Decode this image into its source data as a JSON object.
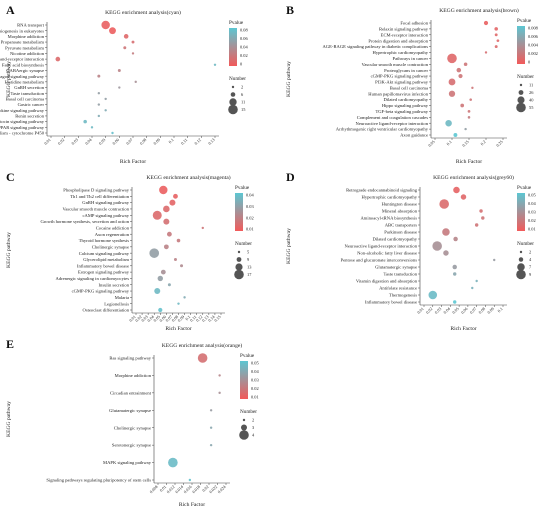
{
  "panels": [
    {
      "letter": "A",
      "title": "KEGG enrichment analysis(cyan)",
      "xlabel": "Rich Factor",
      "ylabel": "KEGG pathway",
      "xlim": [
        0.01,
        0.13
      ],
      "xticks": [
        "0.01",
        "0.02",
        "0.03",
        "0.04",
        "0.05",
        "0.06",
        "0.07",
        "0.08",
        "0.09",
        "0.1",
        "0.11",
        "0.12",
        "0.13"
      ],
      "pvalue_title": "Pvalue",
      "pvalue_range": [
        0,
        0.08
      ],
      "pvalue_ticks": [
        "0.08",
        "0.06",
        "0.04",
        "0.02",
        "0"
      ],
      "size_title": "Number",
      "size_ticks": [
        2,
        6,
        11,
        15
      ],
      "size_range": [
        2,
        15
      ],
      "points": [
        {
          "pathway": "RNA transport",
          "rich": 0.05,
          "count": 13,
          "pvalue": 0.005
        },
        {
          "pathway": "Ribosome biogenesis in eukaryotes",
          "rich": 0.055,
          "count": 10,
          "pvalue": 0.003
        },
        {
          "pathway": "Morphine addiction",
          "rich": 0.065,
          "count": 6,
          "pvalue": 0.01
        },
        {
          "pathway": "Propanoate metabolism",
          "rich": 0.07,
          "count": 3,
          "pvalue": 0.015
        },
        {
          "pathway": "Pyruvate metabolism",
          "rich": 0.064,
          "count": 3,
          "pvalue": 0.02
        },
        {
          "pathway": "Nicotine addiction",
          "rich": 0.07,
          "count": 2,
          "pvalue": 0.025
        },
        {
          "pathway": "Neuroactive ligand-receptor interaction",
          "rich": 0.015,
          "count": 6,
          "pvalue": 0.012
        },
        {
          "pathway": "Fatty acid biosynthesis",
          "rich": 0.13,
          "count": 2,
          "pvalue": 0.07
        },
        {
          "pathway": "GABAergic synapse",
          "rich": 0.06,
          "count": 3,
          "pvalue": 0.03
        },
        {
          "pathway": "Glucagon signaling pathway",
          "rich": 0.045,
          "count": 3,
          "pvalue": 0.03
        },
        {
          "pathway": "Histidine metabolism",
          "rich": 0.072,
          "count": 2,
          "pvalue": 0.04
        },
        {
          "pathway": "GnRH secretion",
          "rich": 0.06,
          "count": 2,
          "pvalue": 0.045
        },
        {
          "pathway": "Taste transduction",
          "rich": 0.045,
          "count": 2,
          "pvalue": 0.05
        },
        {
          "pathway": "Basal cell carcinoma",
          "rich": 0.05,
          "count": 2,
          "pvalue": 0.05
        },
        {
          "pathway": "Gastric cancer",
          "rich": 0.045,
          "count": 2,
          "pvalue": 0.05
        },
        {
          "pathway": "Adipocytokine signaling pathway",
          "rich": 0.05,
          "count": 2,
          "pvalue": 0.06
        },
        {
          "pathway": "Renin secretion",
          "rich": 0.045,
          "count": 2,
          "pvalue": 0.06
        },
        {
          "pathway": "Oxytocin signaling pathway",
          "rich": 0.035,
          "count": 4,
          "pvalue": 0.07
        },
        {
          "pathway": "PPAR signaling pathway",
          "rich": 0.04,
          "count": 2,
          "pvalue": 0.07
        },
        {
          "pathway": "Drug metabolism - cytochrome P450",
          "rich": 0.055,
          "count": 2,
          "pvalue": 0.075
        }
      ]
    },
    {
      "letter": "B",
      "title": "KEGG enrichment analysis(brown)",
      "xlabel": "Rich Factor",
      "ylabel": "KEGG pathway",
      "xlim": [
        0.05,
        0.25
      ],
      "xticks": [
        "0.05",
        "0.1",
        "0.15",
        "0.2",
        "0.25"
      ],
      "pvalue_title": "Pvalue",
      "pvalue_range": [
        0,
        0.008
      ],
      "pvalue_ticks": [
        "0.008",
        "0.006",
        "0.004",
        "0.002",
        "0"
      ],
      "size_title": "Number",
      "size_ticks": [
        11,
        26,
        40,
        55
      ],
      "size_range": [
        11,
        55
      ],
      "points": [
        {
          "pathway": "Focal adhesion",
          "rich": 0.2,
          "count": 22,
          "pvalue": 0.0005
        },
        {
          "pathway": "Relaxin signaling pathway",
          "rich": 0.23,
          "count": 18,
          "pvalue": 0.0008
        },
        {
          "pathway": "ECM-receptor interaction",
          "rich": 0.23,
          "count": 14,
          "pvalue": 0.001
        },
        {
          "pathway": "Protein digestion and absorption",
          "rich": 0.235,
          "count": 13,
          "pvalue": 0.001
        },
        {
          "pathway": "AGE-RAGE signaling pathway in diabetic complications",
          "rich": 0.23,
          "count": 14,
          "pvalue": 0.0012
        },
        {
          "pathway": "Hypertrophic cardiomyopathy",
          "rich": 0.2,
          "count": 11,
          "pvalue": 0.0015
        },
        {
          "pathway": "Pathways in cancer",
          "rich": 0.1,
          "count": 55,
          "pvalue": 0.001
        },
        {
          "pathway": "Vascular smooth muscle contraction",
          "rich": 0.14,
          "count": 18,
          "pvalue": 0.002
        },
        {
          "pathway": "Proteoglycans in cancer",
          "rich": 0.12,
          "count": 24,
          "pvalue": 0.002
        },
        {
          "pathway": "cGMP-PKG signaling pathway",
          "rich": 0.125,
          "count": 22,
          "pvalue": 0.002
        },
        {
          "pathway": "PI3K-Akt signaling pathway",
          "rich": 0.1,
          "count": 38,
          "pvalue": 0.0015
        },
        {
          "pathway": "Basal cell carcinoma",
          "rich": 0.16,
          "count": 11,
          "pvalue": 0.002
        },
        {
          "pathway": "Human papillomavirus infection",
          "rich": 0.1,
          "count": 35,
          "pvalue": 0.002
        },
        {
          "pathway": "Dilated cardiomyopathy",
          "rich": 0.155,
          "count": 12,
          "pvalue": 0.002
        },
        {
          "pathway": "Hippo signaling pathway",
          "rich": 0.13,
          "count": 19,
          "pvalue": 0.002
        },
        {
          "pathway": "TGF-beta signaling pathway",
          "rich": 0.15,
          "count": 13,
          "pvalue": 0.002
        },
        {
          "pathway": "Complement and coagulation cascades",
          "rich": 0.15,
          "count": 12,
          "pvalue": 0.0025
        },
        {
          "pathway": "Neuroactive ligand-receptor interaction",
          "rich": 0.09,
          "count": 36,
          "pvalue": 0.007
        },
        {
          "pathway": "Arrhythmogenic right ventricular cardiomyopathy",
          "rich": 0.14,
          "count": 11,
          "pvalue": 0.005
        },
        {
          "pathway": "Axon guidance",
          "rich": 0.11,
          "count": 20,
          "pvalue": 0.008
        }
      ]
    },
    {
      "letter": "C",
      "title": "KEGG enrichment analysis(magenta)",
      "xlabel": "Rich Factor",
      "ylabel": "KEGG pathway",
      "xlim": [
        0.01,
        0.15
      ],
      "xticks": [
        "0.01",
        "0.02",
        "0.03",
        "0.04",
        "0.05",
        "0.06",
        "0.07",
        "0.08",
        "0.09",
        "0.1",
        "0.11",
        "0.12",
        "0.13",
        "0.14",
        "0.15"
      ],
      "pvalue_title": "Pvalue",
      "pvalue_range": [
        0,
        0.04
      ],
      "pvalue_ticks": [
        "0.04",
        "0.03",
        "0.02",
        "0.01"
      ],
      "size_title": "Number",
      "size_ticks": [
        5,
        9,
        13,
        17
      ],
      "size_range": [
        5,
        17
      ],
      "points": [
        {
          "pathway": "Phospholipase D signaling pathway",
          "rich": 0.055,
          "count": 15,
          "pvalue": 0.002
        },
        {
          "pathway": "Th1 and Th2 cell differentiation",
          "rich": 0.075,
          "count": 9,
          "pvalue": 0.003
        },
        {
          "pathway": "GnRH signaling pathway",
          "rich": 0.07,
          "count": 11,
          "pvalue": 0.004
        },
        {
          "pathway": "Vascular smooth muscle contraction",
          "rich": 0.06,
          "count": 12,
          "pvalue": 0.006
        },
        {
          "pathway": "cAMP signaling pathway",
          "rich": 0.045,
          "count": 16,
          "pvalue": 0.006
        },
        {
          "pathway": "Growth hormone synthesis, secretion and action",
          "rich": 0.06,
          "count": 11,
          "pvalue": 0.008
        },
        {
          "pathway": "Cocaine addiction",
          "rich": 0.12,
          "count": 5,
          "pvalue": 0.01
        },
        {
          "pathway": "Axon regeneration",
          "rich": 0.065,
          "count": 9,
          "pvalue": 0.012
        },
        {
          "pathway": "Thyroid hormone synthesis",
          "rich": 0.08,
          "count": 7,
          "pvalue": 0.012
        },
        {
          "pathway": "Cholinergic synapse",
          "rich": 0.06,
          "count": 9,
          "pvalue": 0.015
        },
        {
          "pathway": "Calcium signaling pathway",
          "rich": 0.04,
          "count": 17,
          "pvalue": 0.025
        },
        {
          "pathway": "Glycerolipid metabolism",
          "rich": 0.075,
          "count": 6,
          "pvalue": 0.015
        },
        {
          "pathway": "Inflammatory bowel disease",
          "rich": 0.085,
          "count": 6,
          "pvalue": 0.018
        },
        {
          "pathway": "Estrogen signaling pathway",
          "rich": 0.055,
          "count": 9,
          "pvalue": 0.02
        },
        {
          "pathway": "Adrenergic signaling in cardiomyocytes",
          "rich": 0.05,
          "count": 10,
          "pvalue": 0.025
        },
        {
          "pathway": "Insulin secretion",
          "rich": 0.065,
          "count": 6,
          "pvalue": 0.028
        },
        {
          "pathway": "cGMP-PKG signaling pathway",
          "rich": 0.045,
          "count": 11,
          "pvalue": 0.035
        },
        {
          "pathway": "Malaria",
          "rich": 0.09,
          "count": 5,
          "pvalue": 0.03
        },
        {
          "pathway": "Legionellosis",
          "rich": 0.08,
          "count": 5,
          "pvalue": 0.035
        },
        {
          "pathway": "Osteoclast differentiation",
          "rich": 0.05,
          "count": 8,
          "pvalue": 0.038
        }
      ]
    },
    {
      "letter": "D",
      "title": "KEGG enrichment analysis(grey60)",
      "xlabel": "Rich Factor",
      "ylabel": "KEGG pathway",
      "xlim": [
        0.01,
        0.1
      ],
      "xticks": [
        "0.01",
        "0.02",
        "0.03",
        "0.04",
        "0.05",
        "0.06",
        "0.07",
        "0.08",
        "0.09",
        "0.1"
      ],
      "pvalue_title": "Pvalue",
      "pvalue_range": [
        0,
        0.05
      ],
      "pvalue_ticks": [
        "0.05",
        "0.04",
        "0.03",
        "0.02",
        "0.01"
      ],
      "size_title": "Number",
      "size_ticks": [
        2,
        4,
        7,
        9
      ],
      "size_range": [
        2,
        9
      ],
      "points": [
        {
          "pathway": "Retrograde endocannabinoid signaling",
          "rich": 0.047,
          "count": 6,
          "pvalue": 0.004
        },
        {
          "pathway": "Hypertrophic cardiomyopathy",
          "rich": 0.055,
          "count": 5,
          "pvalue": 0.006
        },
        {
          "pathway": "Huntington disease",
          "rich": 0.033,
          "count": 9,
          "pvalue": 0.008
        },
        {
          "pathway": "Mineral absorption",
          "rich": 0.075,
          "count": 3,
          "pvalue": 0.01
        },
        {
          "pathway": "Aminoacyl-tRNA biosynthesis",
          "rich": 0.077,
          "count": 3,
          "pvalue": 0.012
        },
        {
          "pathway": "ABC transporters",
          "rich": 0.07,
          "count": 3,
          "pvalue": 0.012
        },
        {
          "pathway": "Parkinson disease",
          "rich": 0.035,
          "count": 7,
          "pvalue": 0.015
        },
        {
          "pathway": "Dilated cardiomyopathy",
          "rich": 0.046,
          "count": 4,
          "pvalue": 0.02
        },
        {
          "pathway": "Neuroactive ligand-receptor interaction",
          "rich": 0.025,
          "count": 9,
          "pvalue": 0.025
        },
        {
          "pathway": "Non-alcoholic fatty liver disease",
          "rich": 0.035,
          "count": 5,
          "pvalue": 0.025
        },
        {
          "pathway": "Pentose and glucuronate interconversions",
          "rich": 0.09,
          "count": 2,
          "pvalue": 0.03
        },
        {
          "pathway": "Glutamatergic synapse",
          "rich": 0.045,
          "count": 4,
          "pvalue": 0.03
        },
        {
          "pathway": "Taste transduction",
          "rich": 0.045,
          "count": 3,
          "pvalue": 0.035
        },
        {
          "pathway": "Vitamin digestion and absorption",
          "rich": 0.07,
          "count": 2,
          "pvalue": 0.04
        },
        {
          "pathway": "Antifolate resistance",
          "rich": 0.065,
          "count": 2,
          "pvalue": 0.04
        },
        {
          "pathway": "Thermogenesis",
          "rich": 0.02,
          "count": 8,
          "pvalue": 0.045
        },
        {
          "pathway": "Inflammatory bowel disease",
          "rich": 0.045,
          "count": 3,
          "pvalue": 0.05
        }
      ]
    },
    {
      "letter": "E",
      "title": "KEGG enrichment analysis(orange)",
      "xlabel": "Rich Factor",
      "ylabel": "KEGG pathway",
      "xlim": [
        0.008,
        0.024
      ],
      "xticks": [
        "0.008",
        "0.01",
        "0.012",
        "0.014",
        "0.016",
        "0.018",
        "0.02",
        "0.022",
        "0.024"
      ],
      "pvalue_title": "Pvalue",
      "pvalue_range": [
        0,
        0.05
      ],
      "pvalue_ticks": [
        "0.05",
        "0.04",
        "0.03",
        "0.02",
        "0.01"
      ],
      "size_title": "Number",
      "size_ticks": [
        2,
        3,
        4
      ],
      "size_range": [
        2,
        4
      ],
      "points": [
        {
          "pathway": "Ras signaling pathway",
          "rich": 0.0185,
          "count": 4,
          "pvalue": 0.01
        },
        {
          "pathway": "Morphine addiction",
          "rich": 0.0225,
          "count": 2,
          "pvalue": 0.02
        },
        {
          "pathway": "Circadian entrainment",
          "rich": 0.0225,
          "count": 2,
          "pvalue": 0.025
        },
        {
          "pathway": "Glutamatergic synapse",
          "rich": 0.0205,
          "count": 2,
          "pvalue": 0.03
        },
        {
          "pathway": "Cholinergic synapse",
          "rich": 0.0205,
          "count": 2,
          "pvalue": 0.035
        },
        {
          "pathway": "Serotonergic synapse",
          "rich": 0.0205,
          "count": 2,
          "pvalue": 0.035
        },
        {
          "pathway": "MAPK signaling pathway",
          "rich": 0.0115,
          "count": 4,
          "pvalue": 0.045
        },
        {
          "pathway": "Signaling pathways regulating pluripotency of stem cells",
          "rich": 0.0155,
          "count": 2,
          "pvalue": 0.048
        }
      ]
    }
  ],
  "colors": {
    "low": "#f25a5a",
    "high": "#5cc6d2"
  }
}
